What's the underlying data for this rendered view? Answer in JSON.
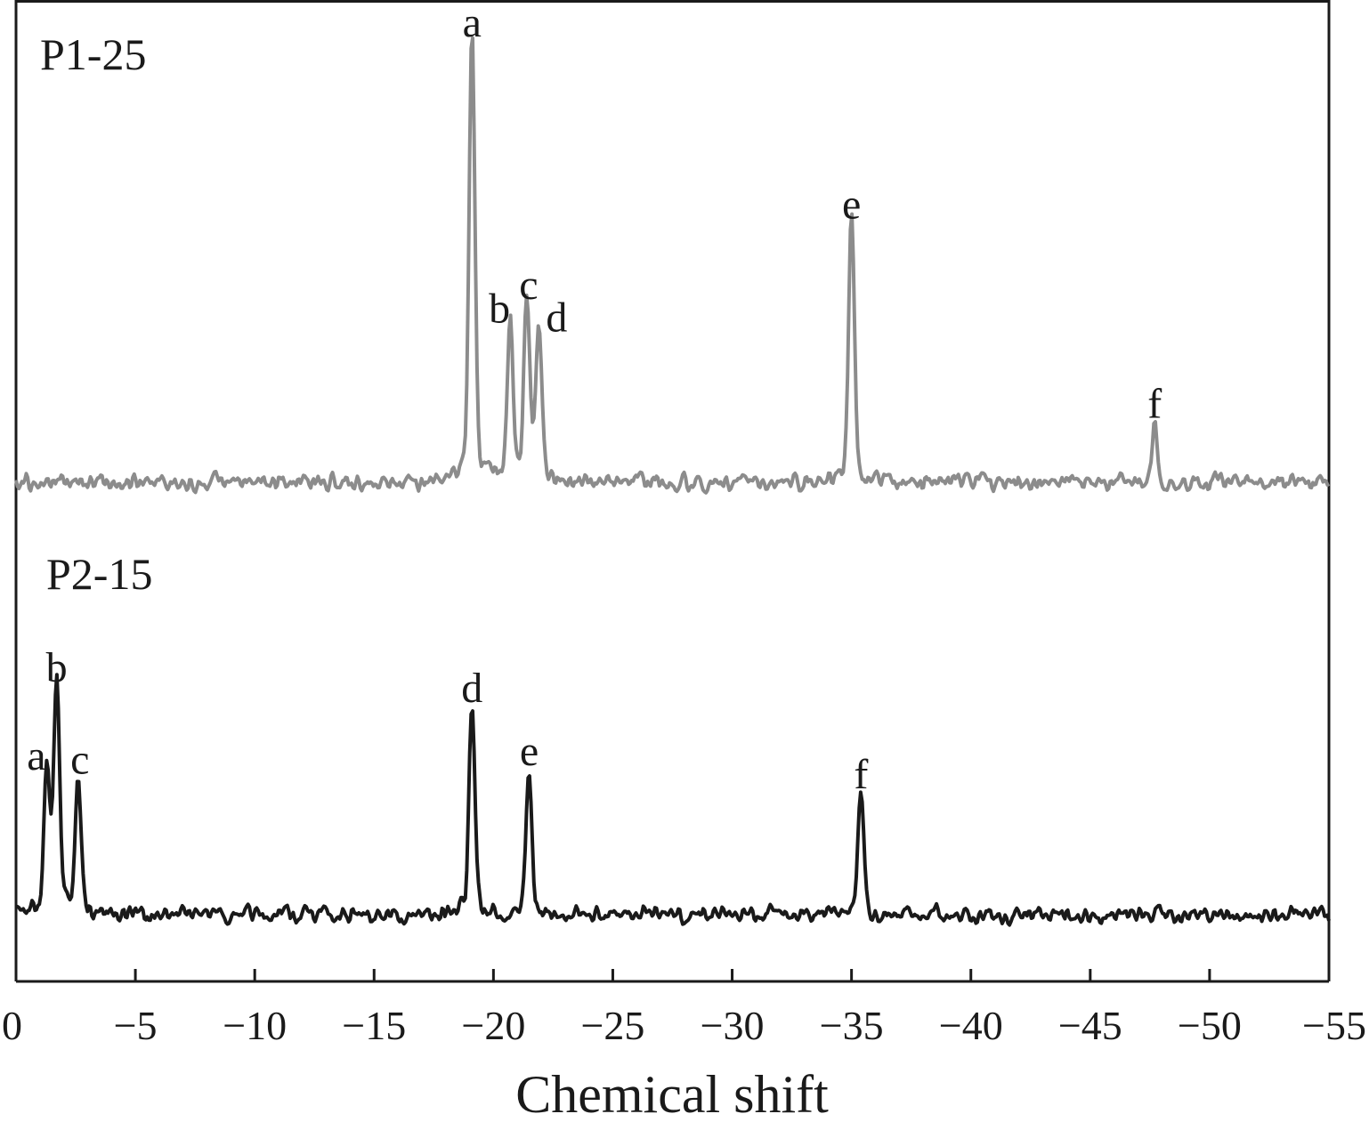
{
  "chart_data": {
    "type": "line",
    "xlabel": "Chemical shift",
    "ylabel": "",
    "xlim": [
      0,
      -55
    ],
    "x_ticks": [
      0,
      -5,
      -10,
      -15,
      -20,
      -25,
      -30,
      -35,
      -40,
      -45,
      -50,
      -55
    ],
    "x_tick_labels": [
      "0",
      "−5",
      "−10",
      "−15",
      "−20",
      "−25",
      "−30",
      "−35",
      "−40",
      "−45",
      "−50",
      "−55"
    ],
    "grid": false,
    "legend": "none",
    "series": [
      {
        "name": "P1-25",
        "color": "#8c8c8c",
        "baseline": 0.0,
        "peaks": [
          {
            "label": "a",
            "x": -19.1,
            "height": 1.0
          },
          {
            "label": "b",
            "x": -20.7,
            "height": 0.34
          },
          {
            "label": "c",
            "x": -21.4,
            "height": 0.39
          },
          {
            "label": "d",
            "x": -21.9,
            "height": 0.34
          },
          {
            "label": "e",
            "x": -35.0,
            "height": 0.58
          },
          {
            "label": "f",
            "x": -47.7,
            "height": 0.12
          }
        ]
      },
      {
        "name": "P2-15",
        "color": "#1a1a1a",
        "baseline": 0.0,
        "peaks": [
          {
            "label": "a",
            "x": -1.3,
            "height": 0.53
          },
          {
            "label": "b",
            "x": -1.7,
            "height": 0.87
          },
          {
            "label": "c",
            "x": -2.6,
            "height": 0.5
          },
          {
            "label": "d",
            "x": -19.1,
            "height": 0.79
          },
          {
            "label": "e",
            "x": -21.5,
            "height": 0.54
          },
          {
            "label": "f",
            "x": -35.4,
            "height": 0.45
          }
        ]
      }
    ]
  }
}
